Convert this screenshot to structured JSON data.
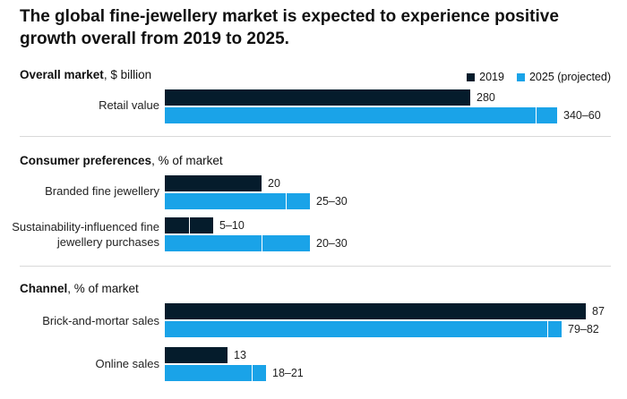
{
  "title": "The global fine-jewellery market is expected to experience positive growth overall from 2019 to 2025.",
  "legend": {
    "items": [
      {
        "label": "2019",
        "color": "#051c2c"
      },
      {
        "label": "2025 (projected)",
        "color": "#1aa3e8"
      }
    ]
  },
  "chart_data": {
    "type": "bar",
    "orientation": "horizontal",
    "title": "The global fine-jewellery market is expected to experience positive growth overall from 2019 to 2025.",
    "series_names": [
      "2019",
      "2025 (projected)"
    ],
    "sections": [
      {
        "name": "Overall market",
        "unit": "$ billion",
        "xlim": [
          0,
          80
        ],
        "categories": [
          {
            "label": "Retail value",
            "v2019": [
              280,
              280
            ],
            "l2019": "280",
            "v2025": [
              340,
              360
            ],
            "l2025": "340–60"
          }
        ]
      },
      {
        "name": "Consumer preferences",
        "unit": "% of market",
        "xlim": [
          0,
          100
        ],
        "categories": [
          {
            "label": "Branded fine jewellery",
            "v2019": [
              20,
              20
            ],
            "l2019": "20",
            "v2025": [
              25,
              30
            ],
            "l2025": "25–30"
          },
          {
            "label": "Sustainability-influenced fine jewellery purchases",
            "v2019": [
              5,
              10
            ],
            "l2019": "5–10",
            "v2025": [
              20,
              30
            ],
            "l2025": "20–30"
          }
        ]
      },
      {
        "name": "Channel",
        "unit": "% of market",
        "xlim": [
          0,
          100
        ],
        "categories": [
          {
            "label": "Brick-and-mortar sales",
            "v2019": [
              87,
              87
            ],
            "l2019": "87",
            "v2025": [
              79,
              82
            ],
            "l2025": "79–82"
          },
          {
            "label": "Online sales",
            "v2019": [
              13,
              13
            ],
            "l2019": "13",
            "v2025": [
              18,
              21
            ],
            "l2025": "18–21"
          }
        ]
      }
    ]
  }
}
